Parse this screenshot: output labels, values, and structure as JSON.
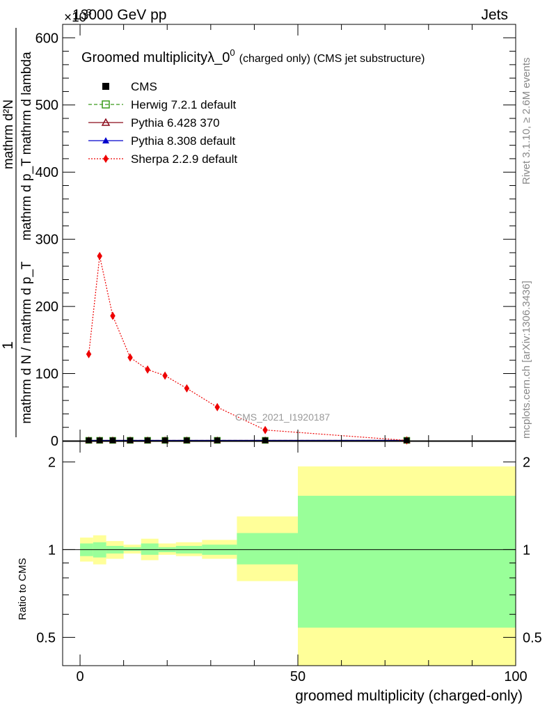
{
  "header": {
    "energy_label": "13000 GeV pp",
    "scale_label": "×10",
    "scale_exponent": "3",
    "category_label": "Jets"
  },
  "side_labels": {
    "rivet": "Rivet 3.1.10, ≥ 2.6M events",
    "mcplots": "mcplots.cern.ch [arXiv:1306.3436]"
  },
  "watermark": "CMS_2021_I1920187",
  "main_panel": {
    "title_main": "Groomed multiplicityλ_0",
    "title_sup": "0",
    "title_rest": "(charged only) (CMS jet substructure)",
    "ylabel": {
      "numerator": "1",
      "denominator": "mathrm d N / mathrm d p_T",
      "frac2_numerator": "mathrm d²N",
      "frac2_denominator": "mathrm d p_T mathrm d lambda"
    },
    "ylim": [
      0,
      620
    ],
    "yticks": [
      0,
      100,
      200,
      300,
      400,
      500,
      600
    ]
  },
  "ratio_panel": {
    "ylabel": "Ratio to CMS",
    "ytick_labels": [
      "0.5",
      "1",
      "2"
    ]
  },
  "x_axis": {
    "label": "groomed multiplicity (charged-only)",
    "ticks": [
      0,
      50,
      100
    ],
    "xlim": [
      -4,
      100
    ]
  },
  "legend": [
    {
      "name": "CMS",
      "color": "#000000",
      "marker": "square",
      "line": "none"
    },
    {
      "name": "Herwig 7.2.1 default",
      "color": "#3a9a1a",
      "marker": "open-square",
      "line": "dashed"
    },
    {
      "name": "Pythia 6.428 370",
      "color": "#8b0a1a",
      "marker": "open-triangle",
      "line": "solid"
    },
    {
      "name": "Pythia 8.308 default",
      "color": "#0000cc",
      "marker": "triangle",
      "line": "solid"
    },
    {
      "name": "Sherpa 2.2.9 default",
      "color": "#ee0000",
      "marker": "diamond",
      "line": "dotted"
    }
  ],
  "chart_data": {
    "type": "line",
    "x": [
      2,
      4.5,
      7.5,
      11.5,
      15.5,
      19.5,
      24.5,
      31.5,
      42.5,
      75
    ],
    "series": [
      {
        "name": "CMS",
        "values": [
          0.6,
          0.6,
          0.6,
          0.6,
          0.6,
          0.6,
          0.6,
          0.6,
          0.6,
          0.6
        ]
      },
      {
        "name": "Herwig 7.2.1 default",
        "values": [
          0.6,
          0.6,
          0.6,
          0.6,
          0.6,
          0.6,
          0.6,
          0.6,
          0.6,
          0.6
        ]
      },
      {
        "name": "Pythia 6.428 370",
        "values": [
          0.6,
          0.6,
          0.6,
          0.6,
          0.6,
          0.6,
          0.6,
          0.6,
          0.6,
          0.6
        ]
      },
      {
        "name": "Pythia 8.308 default",
        "values": [
          0.6,
          0.6,
          0.6,
          0.6,
          0.6,
          0.6,
          0.6,
          0.6,
          0.6,
          0.6
        ]
      },
      {
        "name": "Sherpa 2.2.9 default",
        "values": [
          129,
          275,
          186,
          124,
          106,
          97,
          78,
          50,
          16,
          0.5
        ]
      }
    ],
    "ratio_bands": {
      "edges": [
        0,
        3,
        6,
        10,
        14,
        18,
        22,
        28,
        36,
        50,
        100
      ],
      "yellow_low": [
        0.91,
        0.89,
        0.93,
        0.97,
        0.92,
        0.96,
        0.95,
        0.93,
        0.78,
        0.35
      ],
      "yellow_high": [
        1.1,
        1.12,
        1.07,
        1.04,
        1.09,
        1.05,
        1.06,
        1.08,
        1.3,
        1.93
      ],
      "green_low": [
        0.95,
        0.94,
        0.97,
        0.99,
        0.96,
        0.98,
        0.97,
        0.96,
        0.89,
        0.54
      ],
      "green_high": [
        1.05,
        1.06,
        1.03,
        1.02,
        1.05,
        1.02,
        1.03,
        1.04,
        1.14,
        1.53
      ]
    },
    "ratio_ylim": [
      0.4,
      2.35
    ],
    "ratio_scale": "log",
    "title": "Groomed multiplicityλ_0^0 (charged only) (CMS jet substructure)",
    "xlabel": "groomed multiplicity (charged-only)",
    "ylabel": "1 / (mathrm d N / mathrm d p_T) · mathrm d²N / (mathrm d p_T mathrm d lambda)",
    "ylim": [
      0,
      620
    ],
    "grid": false,
    "legend_position": "top-left"
  }
}
